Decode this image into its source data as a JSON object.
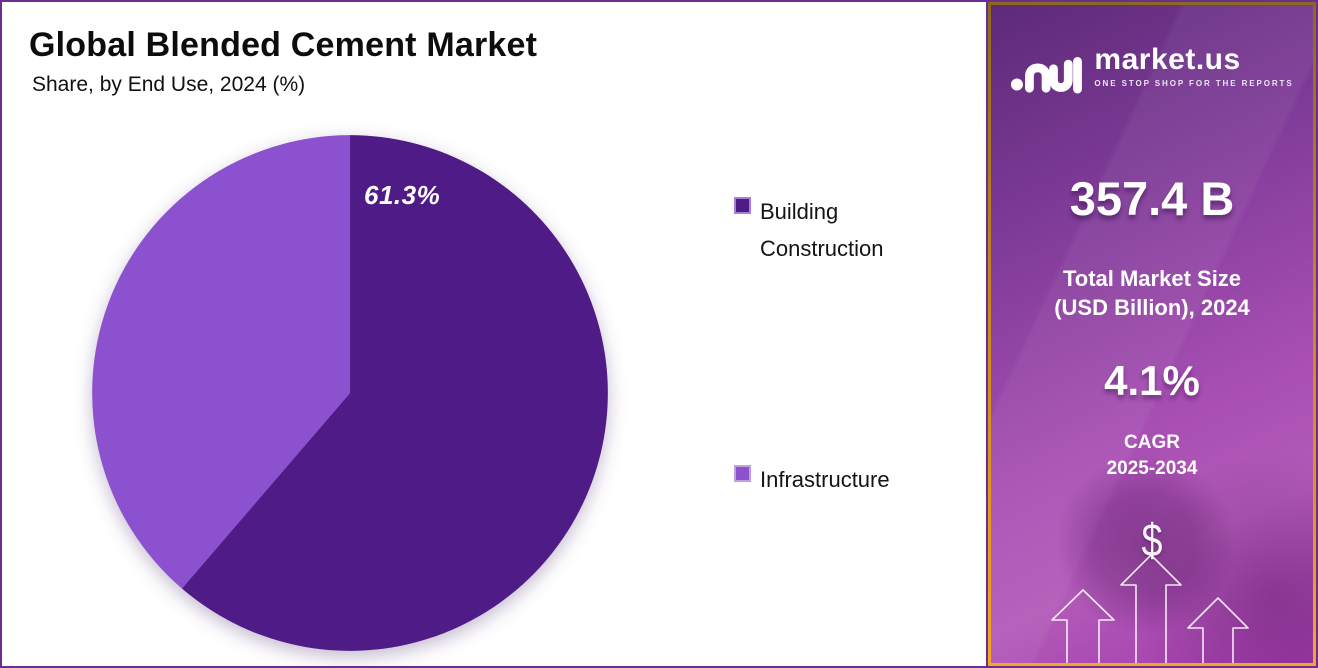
{
  "header": {
    "title": "Global Blended Cement Market",
    "subtitle": "Share, by End Use, 2024 (%)"
  },
  "chart_data": {
    "type": "pie",
    "title": "Global Blended Cement Market",
    "subtitle": "Share, by End Use, 2024 (%)",
    "categories": [
      "Building Construction",
      "Infrastructure"
    ],
    "values": [
      61.3,
      38.7
    ],
    "unit": "%",
    "displayed_label": "61.3%",
    "displayed_label_series": "Building Construction",
    "colors": [
      "#4f1b87",
      "#8b51ce"
    ],
    "marker_border_colors": [
      "#a87fd6",
      "#bfa0e4"
    ],
    "start_angle_deg": -90,
    "direction": "clockwise",
    "legend_position": "right"
  },
  "sidebar": {
    "brand": "market.us",
    "tagline": "ONE STOP SHOP FOR THE REPORTS",
    "market_size_value": "357.4 B",
    "market_size_label_line1": "Total Market Size",
    "market_size_label_line2": "(USD Billion), 2024",
    "cagr_value": "4.1%",
    "cagr_label_line1": "CAGR",
    "cagr_label_line2": "2025-2034",
    "dollar_symbol": "$"
  },
  "colors": {
    "frame_border": "#6b2d8f",
    "sidebar_border_gold": "#f5a623",
    "sidebar_gradient_top": "#5e2a78",
    "sidebar_gradient_bottom": "#a13aab",
    "title_text": "#0d0d0d",
    "pie_label_text": "#ffffff"
  }
}
